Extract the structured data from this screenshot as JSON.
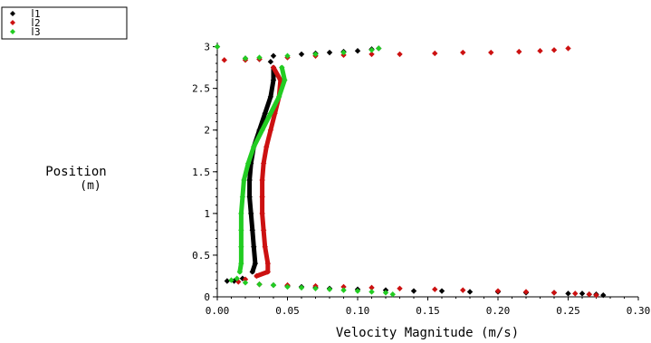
{
  "chart_data": {
    "type": "scatter",
    "xlabel": "Velocity Magnitude (m/s)",
    "ylabel": "Position",
    "ylabel_unit": "(m)",
    "xlim": [
      0.0,
      0.3
    ],
    "ylim": [
      0,
      3.05
    ],
    "xticks": [
      "0.00",
      "0.05",
      "0.10",
      "0.15",
      "0.20",
      "0.25",
      "0.30"
    ],
    "yticks": [
      "0",
      "0.5",
      "1",
      "1.5",
      "2",
      "2.5",
      "3"
    ],
    "grid": false,
    "legend_position": "top-left",
    "series": [
      {
        "name": "1",
        "color": "#000000",
        "marker": "diamond",
        "points": [
          [
            0.0,
            3.0
          ],
          [
            0.04,
            2.89
          ],
          [
            0.06,
            2.91
          ],
          [
            0.07,
            2.92
          ],
          [
            0.08,
            2.93
          ],
          [
            0.09,
            2.94
          ],
          [
            0.1,
            2.95
          ],
          [
            0.11,
            2.97
          ],
          [
            0.115,
            2.98
          ],
          [
            0.02,
            2.86
          ],
          [
            0.03,
            2.85
          ],
          [
            0.038,
            2.82
          ],
          [
            0.04,
            2.75
          ],
          [
            0.04,
            2.6
          ],
          [
            0.038,
            2.4
          ],
          [
            0.034,
            2.2
          ],
          [
            0.03,
            2.0
          ],
          [
            0.026,
            1.8
          ],
          [
            0.024,
            1.6
          ],
          [
            0.023,
            1.4
          ],
          [
            0.023,
            1.2
          ],
          [
            0.024,
            1.0
          ],
          [
            0.025,
            0.8
          ],
          [
            0.026,
            0.6
          ],
          [
            0.027,
            0.4
          ],
          [
            0.025,
            0.3
          ],
          [
            0.018,
            0.22
          ],
          [
            0.012,
            0.19
          ],
          [
            0.007,
            0.19
          ],
          [
            0.03,
            0.15
          ],
          [
            0.04,
            0.14
          ],
          [
            0.05,
            0.13
          ],
          [
            0.06,
            0.12
          ],
          [
            0.07,
            0.11
          ],
          [
            0.08,
            0.1
          ],
          [
            0.1,
            0.09
          ],
          [
            0.12,
            0.08
          ],
          [
            0.14,
            0.07
          ],
          [
            0.16,
            0.07
          ],
          [
            0.18,
            0.06
          ],
          [
            0.2,
            0.06
          ],
          [
            0.22,
            0.05
          ],
          [
            0.24,
            0.05
          ],
          [
            0.25,
            0.04
          ],
          [
            0.26,
            0.04
          ],
          [
            0.265,
            0.03
          ],
          [
            0.27,
            0.03
          ],
          [
            0.275,
            0.02
          ]
        ]
      },
      {
        "name": "2",
        "color": "#cc1111",
        "marker": "diamond",
        "points": [
          [
            0.005,
            2.84
          ],
          [
            0.02,
            2.84
          ],
          [
            0.03,
            2.85
          ],
          [
            0.05,
            2.87
          ],
          [
            0.07,
            2.89
          ],
          [
            0.09,
            2.9
          ],
          [
            0.11,
            2.91
          ],
          [
            0.13,
            2.91
          ],
          [
            0.155,
            2.92
          ],
          [
            0.175,
            2.93
          ],
          [
            0.195,
            2.93
          ],
          [
            0.215,
            2.94
          ],
          [
            0.23,
            2.95
          ],
          [
            0.24,
            2.96
          ],
          [
            0.25,
            2.98
          ],
          [
            0.04,
            2.75
          ],
          [
            0.045,
            2.6
          ],
          [
            0.044,
            2.4
          ],
          [
            0.041,
            2.2
          ],
          [
            0.038,
            2.0
          ],
          [
            0.035,
            1.8
          ],
          [
            0.033,
            1.6
          ],
          [
            0.032,
            1.4
          ],
          [
            0.032,
            1.2
          ],
          [
            0.032,
            1.0
          ],
          [
            0.033,
            0.8
          ],
          [
            0.034,
            0.6
          ],
          [
            0.036,
            0.4
          ],
          [
            0.036,
            0.3
          ],
          [
            0.028,
            0.25
          ],
          [
            0.02,
            0.21
          ],
          [
            0.015,
            0.18
          ],
          [
            0.03,
            0.15
          ],
          [
            0.05,
            0.14
          ],
          [
            0.07,
            0.13
          ],
          [
            0.09,
            0.12
          ],
          [
            0.11,
            0.11
          ],
          [
            0.13,
            0.1
          ],
          [
            0.155,
            0.09
          ],
          [
            0.175,
            0.08
          ],
          [
            0.2,
            0.07
          ],
          [
            0.22,
            0.06
          ],
          [
            0.24,
            0.05
          ],
          [
            0.255,
            0.04
          ],
          [
            0.265,
            0.03
          ],
          [
            0.27,
            0.02
          ]
        ]
      },
      {
        "name": "3",
        "color": "#22cc22",
        "marker": "diamond",
        "points": [
          [
            0.0,
            3.0
          ],
          [
            0.02,
            2.86
          ],
          [
            0.03,
            2.87
          ],
          [
            0.05,
            2.89
          ],
          [
            0.07,
            2.91
          ],
          [
            0.09,
            2.93
          ],
          [
            0.11,
            2.96
          ],
          [
            0.115,
            2.98
          ],
          [
            0.046,
            2.75
          ],
          [
            0.048,
            2.6
          ],
          [
            0.044,
            2.4
          ],
          [
            0.038,
            2.2
          ],
          [
            0.032,
            2.0
          ],
          [
            0.026,
            1.8
          ],
          [
            0.022,
            1.6
          ],
          [
            0.019,
            1.4
          ],
          [
            0.018,
            1.2
          ],
          [
            0.017,
            1.0
          ],
          [
            0.017,
            0.8
          ],
          [
            0.017,
            0.6
          ],
          [
            0.017,
            0.4
          ],
          [
            0.016,
            0.3
          ],
          [
            0.014,
            0.22
          ],
          [
            0.01,
            0.2
          ],
          [
            0.02,
            0.17
          ],
          [
            0.03,
            0.15
          ],
          [
            0.04,
            0.14
          ],
          [
            0.05,
            0.12
          ],
          [
            0.06,
            0.11
          ],
          [
            0.07,
            0.1
          ],
          [
            0.08,
            0.09
          ],
          [
            0.09,
            0.08
          ],
          [
            0.1,
            0.07
          ],
          [
            0.11,
            0.06
          ],
          [
            0.12,
            0.05
          ],
          [
            0.125,
            0.03
          ]
        ]
      }
    ]
  }
}
